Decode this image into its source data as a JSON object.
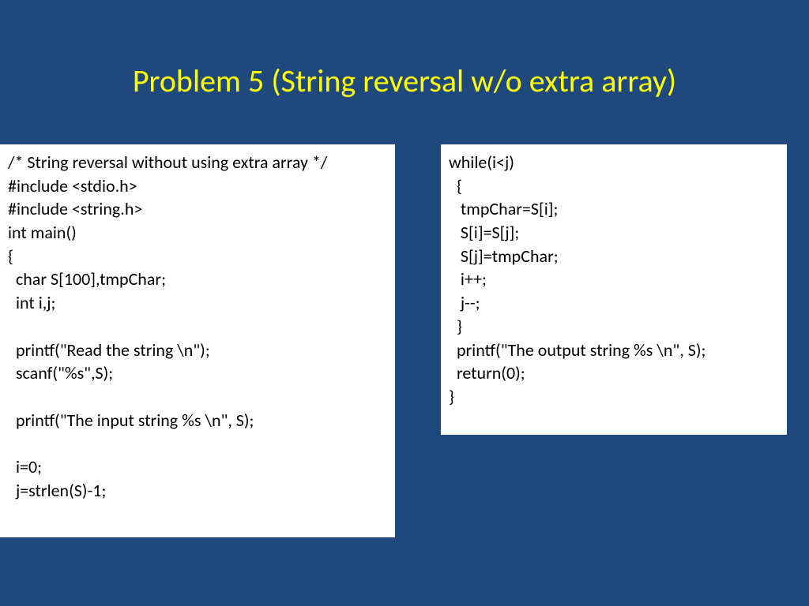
{
  "slide": {
    "background_color": "#1f497d",
    "title": {
      "text": "Problem 5 (String reversal w/o extra array)",
      "color": "#ffff00",
      "fontsize": 40
    },
    "leftBox": {
      "background_color": "#ffffff",
      "text_color": "#000000",
      "fontsize": 22,
      "code": "/* String reversal without using extra array */\n#include <stdio.h>\n#include <string.h>\nint main()\n{\n  char S[100],tmpChar;\n  int i,j;\n\n  printf(\"Read the string \\n\");\n  scanf(\"%s\",S);\n\n  printf(\"The input string %s \\n\", S);\n\n  i=0;\n  j=strlen(S)-1;"
    },
    "rightBox": {
      "background_color": "#ffffff",
      "text_color": "#000000",
      "fontsize": 22,
      "code": "while(i<j)\n  {\n   tmpChar=S[i];\n   S[i]=S[j];\n   S[j]=tmpChar;\n   i++;\n   j--;\n  }\n  printf(\"The output string %s \\n\", S);\n  return(0);\n}"
    }
  }
}
